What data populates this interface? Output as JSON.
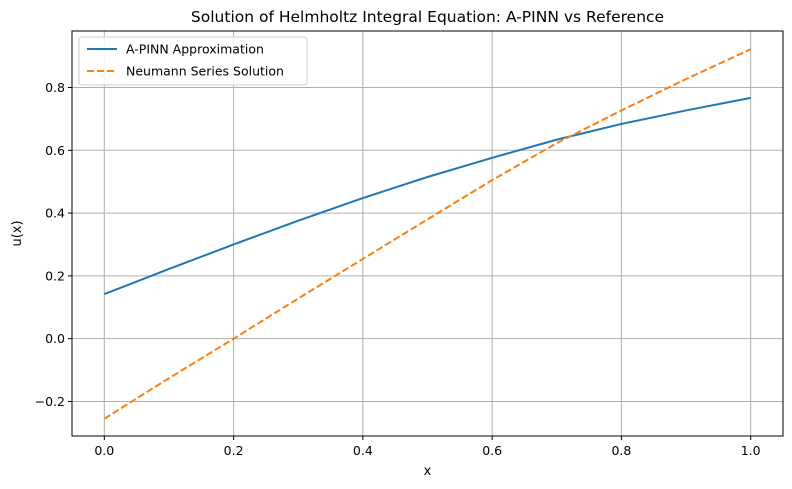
{
  "chart_data": {
    "type": "line",
    "title": "Solution of Helmholtz Integral Equation: A-PINN vs Reference",
    "xlabel": "x",
    "ylabel": "u(x)",
    "xlim": [
      -0.05,
      1.05
    ],
    "ylim": [
      -0.31,
      0.98
    ],
    "xticks": [
      0.0,
      0.2,
      0.4,
      0.6,
      0.8,
      1.0
    ],
    "xtick_labels": [
      "0.0",
      "0.2",
      "0.4",
      "0.6",
      "0.8",
      "1.0"
    ],
    "yticks": [
      -0.2,
      0.0,
      0.2,
      0.4,
      0.6,
      0.8
    ],
    "ytick_labels": [
      "−0.2",
      "0.0",
      "0.2",
      "0.4",
      "0.6",
      "0.8"
    ],
    "grid": true,
    "legend_position": "top-left",
    "series": [
      {
        "name": "A-PINN Approximation",
        "color": "#1f77b4",
        "style": "solid",
        "x": [
          0.0,
          0.1,
          0.2,
          0.3,
          0.4,
          0.5,
          0.6,
          0.7,
          0.8,
          0.9,
          1.0
        ],
        "y": [
          0.142,
          0.222,
          0.3,
          0.376,
          0.448,
          0.515,
          0.576,
          0.634,
          0.684,
          0.727,
          0.767
        ]
      },
      {
        "name": "Neumann Series Solution",
        "color": "#ff7f0e",
        "style": "dashed",
        "x": [
          0.0,
          0.1,
          0.2,
          0.3,
          0.4,
          0.5,
          0.6,
          0.7,
          0.8,
          0.9,
          1.0
        ],
        "y": [
          -0.255,
          -0.126,
          0.0,
          0.128,
          0.254,
          0.38,
          0.505,
          0.623,
          0.727,
          0.827,
          0.922
        ]
      }
    ]
  }
}
